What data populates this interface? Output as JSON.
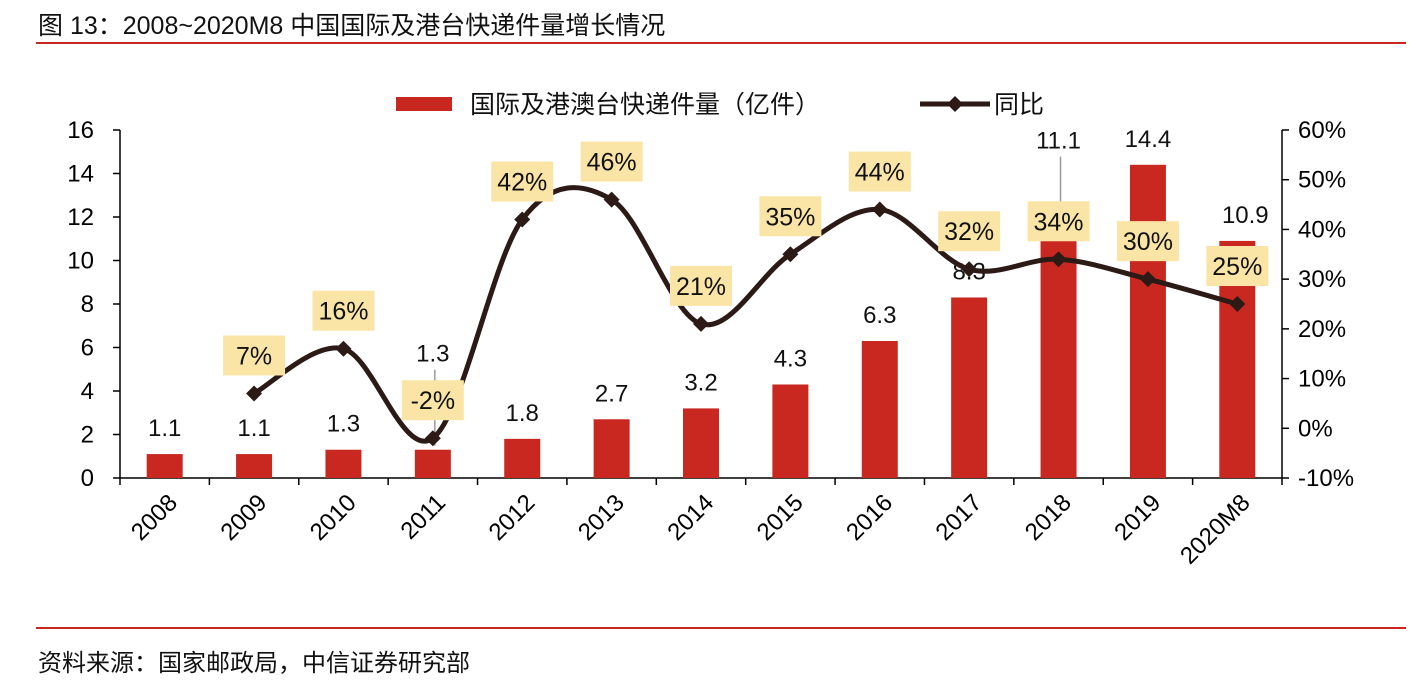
{
  "title": "图 13：2008~2020M8 中国国际及港台快递件量增长情况",
  "source": "资料来源：国家邮政局，中信证券研究部",
  "chart_data": {
    "type": "bar+line",
    "categories": [
      "2008",
      "2009",
      "2010",
      "2011",
      "2012",
      "2013",
      "2014",
      "2015",
      "2016",
      "2017",
      "2018",
      "2019",
      "2020M8"
    ],
    "series": [
      {
        "name": "国际及港澳台快递件量（亿件）",
        "type": "bar",
        "axis": "left",
        "color": "#c8281f",
        "values": [
          1.1,
          1.1,
          1.3,
          1.3,
          1.8,
          2.7,
          3.2,
          4.3,
          6.3,
          8.3,
          11.1,
          14.4,
          10.9
        ],
        "labels": [
          "1.1",
          "1.1",
          "1.3",
          "1.3",
          "1.8",
          "2.7",
          "3.2",
          "4.3",
          "6.3",
          "8.3",
          "11.1",
          "14.4",
          "10.9"
        ]
      },
      {
        "name": "同比",
        "type": "line",
        "axis": "right",
        "color": "#2b1a16",
        "marker": "diamond",
        "smooth": true,
        "values": [
          null,
          7,
          16,
          -2,
          42,
          46,
          21,
          35,
          44,
          32,
          34,
          30,
          25
        ],
        "labels": [
          "",
          "7%",
          "16%",
          "-2%",
          "42%",
          "46%",
          "21%",
          "35%",
          "44%",
          "32%",
          "34%",
          "30%",
          "25%"
        ]
      }
    ],
    "y_left": {
      "range": [
        0,
        16
      ],
      "ticks": [
        "0",
        "2",
        "4",
        "6",
        "8",
        "10",
        "12",
        "14",
        "16"
      ]
    },
    "y_right": {
      "range": [
        -10,
        60
      ],
      "ticks": [
        "-10%",
        "0%",
        "10%",
        "20%",
        "30%",
        "40%",
        "50%",
        "60%"
      ]
    },
    "label_box_color": "#fbe5a6",
    "grid": false,
    "legend": "top"
  }
}
